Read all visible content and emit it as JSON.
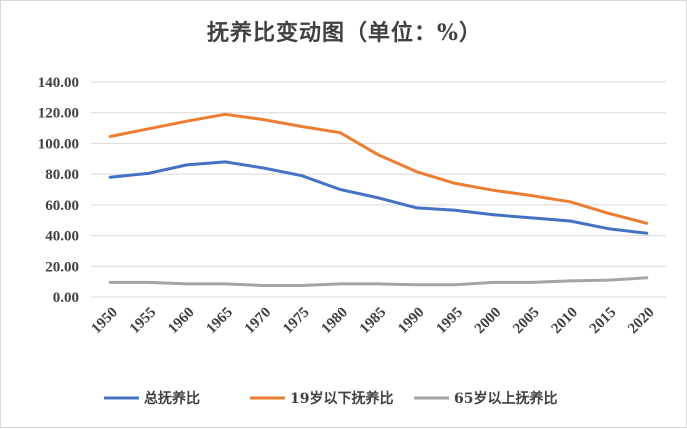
{
  "chart_data": {
    "type": "line",
    "title": "抚养比变动图（单位：%）",
    "xlabel": "",
    "ylabel": "",
    "categories": [
      "1950",
      "1955",
      "1960",
      "1965",
      "1970",
      "1975",
      "1980",
      "1985",
      "1990",
      "1995",
      "2000",
      "2005",
      "2010",
      "2015",
      "2020"
    ],
    "ylim": [
      0,
      140
    ],
    "yticks": [
      "0.00",
      "20.00",
      "40.00",
      "60.00",
      "80.00",
      "100.00",
      "120.00",
      "140.00"
    ],
    "grid": true,
    "legend_position": "bottom",
    "series": [
      {
        "name": "总抚养比",
        "color": "#4472C4",
        "values": [
          78.0,
          80.5,
          86.0,
          88.0,
          84.0,
          79.0,
          70.0,
          64.5,
          58.0,
          56.5,
          53.5,
          51.5,
          49.5,
          44.5,
          41.5
        ]
      },
      {
        "name": "19岁以下抚养比",
        "color": "#ED7D31",
        "values": [
          104.5,
          109.5,
          114.5,
          119.0,
          115.5,
          111.0,
          107.0,
          92.5,
          81.5,
          74.0,
          69.5,
          66.0,
          62.0,
          54.5,
          48.0
        ]
      },
      {
        "name": "65岁以上抚养比",
        "color": "#A5A5A5",
        "values": [
          9.5,
          9.5,
          8.5,
          8.5,
          7.5,
          7.5,
          8.5,
          8.5,
          8.0,
          8.0,
          9.5,
          9.5,
          10.5,
          11.0,
          12.5
        ]
      }
    ]
  }
}
